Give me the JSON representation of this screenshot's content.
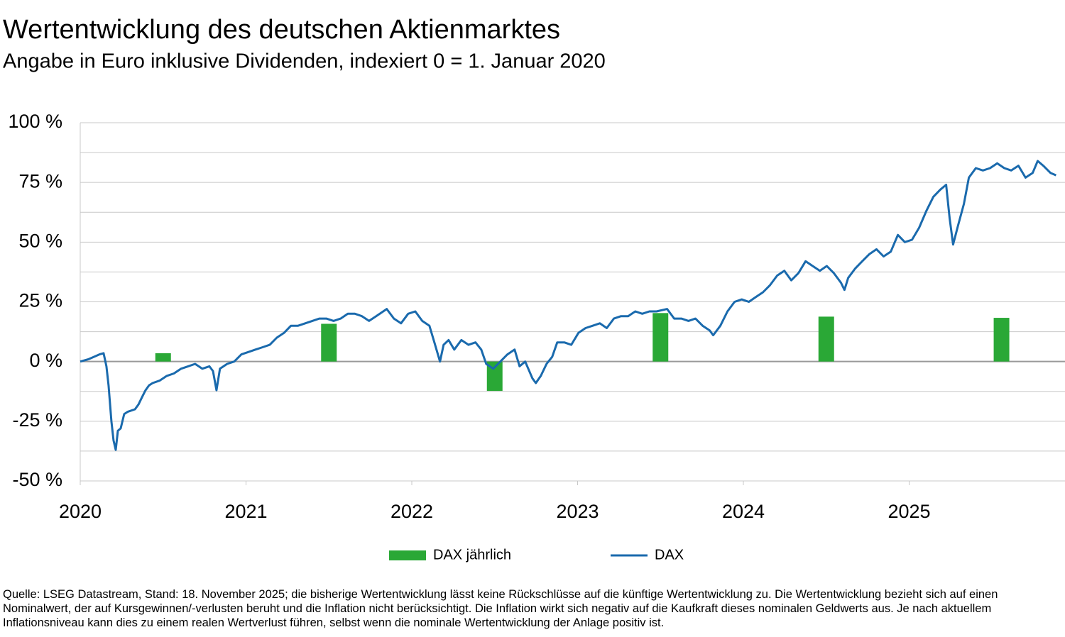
{
  "chart_data": {
    "type": "line",
    "title": "Wertentwicklung des deutschen Aktienmarktes",
    "subtitle": "Angabe in Euro inklusive Dividenden, indexiert 0 = 1. Januar 2020",
    "source": "Quelle: LSEG Datastream, Stand: 18. November 2025; die bisherige Wertentwicklung lässt keine Rückschlüsse auf die künftige Wertentwicklung zu. Die Wertentwicklung bezieht sich auf einen Nominalwert, der auf Kursgewinnen/-verlusten beruht und die Inflation nicht berücksichtigt. Die Inflation wirkt sich negativ auf die Kaufkraft dieses nominalen Geldwerts aus. Je nach aktuellem Inflationsniveau kann dies zu einem realen Wertverlust führen, selbst wenn die nominale Wertentwicklung der Anlage positiv ist.",
    "xlim": [
      2020,
      2025.94
    ],
    "xticks": [
      2020,
      2021,
      2022,
      2023,
      2024,
      2025
    ],
    "ylim": [
      -50,
      100
    ],
    "yticks": [
      {
        "value": -50,
        "label": "-50 %"
      },
      {
        "value": -25,
        "label": "-25 %"
      },
      {
        "value": 0,
        "label": "0 %"
      },
      {
        "value": 25,
        "label": "25 %"
      },
      {
        "value": 50,
        "label": "50 %"
      },
      {
        "value": 75,
        "label": "75 %"
      },
      {
        "value": 100,
        "label": "100 %"
      }
    ],
    "minor_yticks": [
      -37.5,
      -12.5,
      12.5,
      37.5,
      62.5,
      87.5
    ],
    "grid": true,
    "legend": "bottom",
    "series": [
      {
        "name": "DAX jährlich",
        "type": "bar",
        "color": "#2aa836",
        "x": [
          2020.5,
          2021.5,
          2022.5,
          2023.5,
          2024.5,
          2025.557
        ],
        "values": [
          3.5,
          15.8,
          -12.3,
          20.3,
          18.8,
          18.3
        ]
      },
      {
        "name": "DAX",
        "type": "line",
        "color": "#1a6aad",
        "x": [
          2020.0,
          2020.051,
          2020.116,
          2020.141,
          2020.158,
          2020.171,
          2020.188,
          2020.201,
          2020.214,
          2020.227,
          2020.244,
          2020.265,
          2020.287,
          2020.33,
          2020.351,
          2020.372,
          2020.394,
          2020.415,
          2020.437,
          2020.479,
          2020.522,
          2020.565,
          2020.608,
          2020.651,
          2020.693,
          2020.736,
          2020.779,
          2020.801,
          2020.822,
          2020.843,
          2020.886,
          2020.929,
          2020.972,
          2021.015,
          2021.057,
          2021.1,
          2021.143,
          2021.186,
          2021.229,
          2021.271,
          2021.314,
          2021.357,
          2021.4,
          2021.443,
          2021.485,
          2021.528,
          2021.571,
          2021.614,
          2021.657,
          2021.699,
          2021.742,
          2021.785,
          2021.849,
          2021.892,
          2021.935,
          2021.978,
          2022.021,
          2022.063,
          2022.106,
          2022.136,
          2022.17,
          2022.192,
          2022.222,
          2022.256,
          2022.299,
          2022.342,
          2022.384,
          2022.419,
          2022.449,
          2022.491,
          2022.534,
          2022.577,
          2022.62,
          2022.65,
          2022.684,
          2022.727,
          2022.748,
          2022.778,
          2022.813,
          2022.847,
          2022.877,
          2022.92,
          2022.962,
          2023.005,
          2023.048,
          2023.091,
          2023.134,
          2023.176,
          2023.219,
          2023.262,
          2023.305,
          2023.348,
          2023.39,
          2023.433,
          2023.476,
          2023.54,
          2023.583,
          2023.626,
          2023.669,
          2023.711,
          2023.754,
          2023.797,
          2023.818,
          2023.861,
          2023.904,
          2023.947,
          2023.99,
          2024.033,
          2024.075,
          2024.118,
          2024.161,
          2024.204,
          2024.247,
          2024.289,
          2024.332,
          2024.375,
          2024.418,
          2024.461,
          2024.503,
          2024.546,
          2024.589,
          2024.61,
          2024.632,
          2024.675,
          2024.717,
          2024.76,
          2024.803,
          2024.846,
          2024.889,
          2024.932,
          2024.974,
          2025.017,
          2025.06,
          2025.103,
          2025.146,
          2025.188,
          2025.223,
          2025.244,
          2025.265,
          2025.295,
          2025.33,
          2025.36,
          2025.402,
          2025.445,
          2025.488,
          2025.531,
          2025.574,
          2025.616,
          2025.659,
          2025.702,
          2025.745,
          2025.775,
          2025.809,
          2025.852,
          2025.886
        ],
        "values": [
          0,
          1,
          3,
          3.5,
          -2,
          -10,
          -25,
          -33,
          -37,
          -29,
          -28,
          -22,
          -21,
          -20,
          -18,
          -15,
          -12,
          -10,
          -9,
          -8,
          -6,
          -5,
          -3,
          -2,
          -1,
          -3,
          -2,
          -4,
          -12,
          -3,
          -1,
          0,
          3,
          4,
          5,
          6,
          7,
          10,
          12,
          15,
          15,
          16,
          17,
          18,
          18,
          17,
          18,
          20,
          20,
          19,
          17,
          19,
          22,
          18,
          16,
          20,
          21,
          17,
          15,
          8,
          0,
          7,
          9,
          5,
          9,
          7,
          8,
          5,
          -1,
          -3,
          0,
          3,
          5,
          -2,
          0,
          -7,
          -9,
          -6,
          -1,
          2,
          8,
          8,
          7,
          12,
          14,
          15,
          16,
          14,
          18,
          19,
          19,
          21,
          20,
          21,
          21,
          22,
          18,
          18,
          17,
          18,
          15,
          13,
          11,
          15,
          21,
          25,
          26,
          25,
          27,
          29,
          32,
          36,
          38,
          34,
          37,
          42,
          40,
          38,
          40,
          37,
          33,
          30,
          35,
          39,
          42,
          45,
          47,
          44,
          46,
          53,
          50,
          51,
          56,
          63,
          69,
          72,
          74,
          60,
          49,
          57,
          66,
          77,
          81,
          80,
          81,
          83,
          81,
          80,
          82,
          77,
          79,
          84,
          82,
          79,
          78
        ]
      }
    ]
  }
}
